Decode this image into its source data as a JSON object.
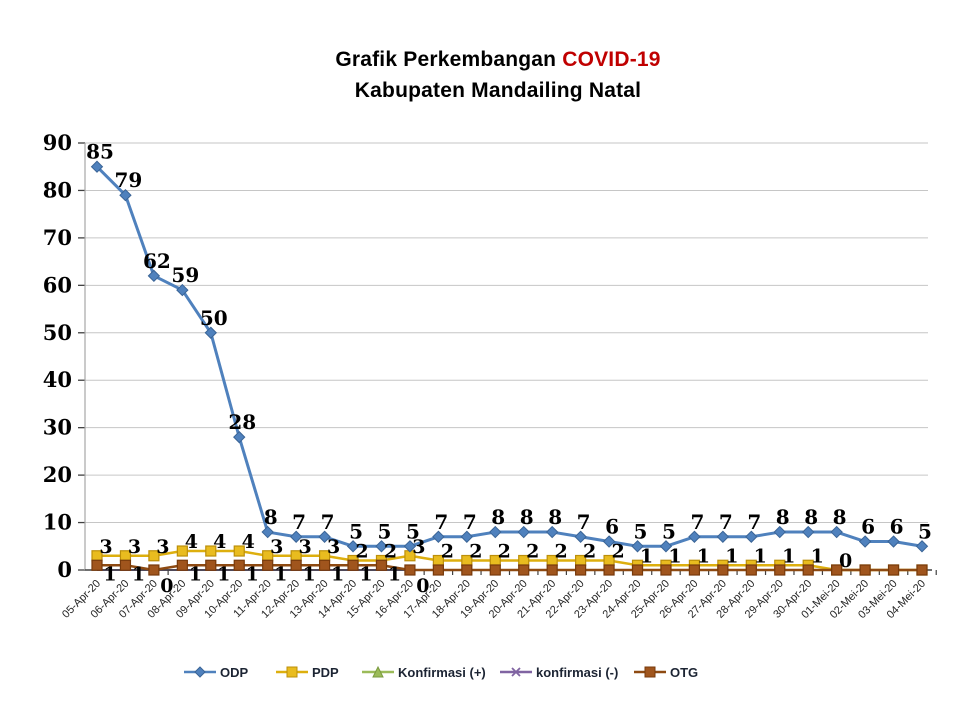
{
  "title": {
    "line1_black": "Grafik Perkembangan",
    "line1_red": "COVID-19",
    "line2": "Kabupaten Mandailing Natal"
  },
  "colors": {
    "title_text": "#000000",
    "title_covid_red": "#C00000",
    "gridline": "#C6C6C6",
    "y_axis_line": "#A6A6A6",
    "x_axis_line": "#404040",
    "tick": "#404040",
    "axis_label_text": "#000000",
    "date_label_text": "#262626",
    "data_label_text": "#000000",
    "legend_text": "#1c2433",
    "background": "#FFFFFF"
  },
  "chart_data": {
    "type": "line",
    "title": "Grafik Perkembangan COVID-19 Kabupaten Mandailing Natal",
    "categories": [
      "05-Apr-20",
      "06-Apr-20",
      "07-Apr-20",
      "08-Apr-20",
      "09-Apr-20",
      "10-Apr-20",
      "11-Apr-20",
      "12-Apr-20",
      "13-Apr-20",
      "14-Apr-20",
      "15-Apr-20",
      "16-Apr-20",
      "17-Apr-20",
      "18-Apr-20",
      "19-Apr-20",
      "20-Apr-20",
      "21-Apr-20",
      "22-Apr-20",
      "23-Apr-20",
      "24-Apr-20",
      "25-Apr-20",
      "26-Apr-20",
      "27-Apr-20",
      "28-Apr-20",
      "29-Apr-20",
      "30-Apr-20",
      "01-Mei-20",
      "02-Mei-20",
      "03-Mei-20",
      "04-Mei-20"
    ],
    "series": [
      {
        "name": "ODP",
        "marker": "diamond",
        "color": "#4F81BD",
        "marker_fill": "#4F81BD",
        "marker_stroke": "#3A6496",
        "values": [
          85,
          79,
          62,
          59,
          50,
          28,
          8,
          7,
          7,
          5,
          5,
          5,
          7,
          7,
          8,
          8,
          8,
          7,
          6,
          5,
          5,
          7,
          7,
          7,
          8,
          8,
          8,
          6,
          6,
          5
        ],
        "labels_visible_count": 30
      },
      {
        "name": "PDP",
        "marker": "square",
        "color": "#DDAF0E",
        "marker_fill": "#E9BC1F",
        "marker_stroke": "#BC8F0A",
        "values": [
          3,
          3,
          3,
          4,
          4,
          4,
          3,
          3,
          3,
          2,
          2,
          3,
          2,
          2,
          2,
          2,
          2,
          2,
          2,
          1,
          1,
          1,
          1,
          1,
          1,
          1,
          0,
          0,
          0,
          0
        ],
        "labels_visible_count": 27
      },
      {
        "name": "Konfirmasi (+)",
        "marker": "triangle",
        "color": "#9BBB59",
        "marker_fill": "#9BBB59",
        "marker_stroke": "#7A9A3F",
        "values": [
          0,
          0,
          0,
          0,
          0,
          0,
          0,
          0,
          0,
          0,
          0,
          0,
          0,
          0,
          0,
          0,
          0,
          0,
          0,
          0,
          0,
          0,
          0,
          0,
          0,
          0,
          0,
          0,
          0,
          0
        ],
        "labels_visible_count": 0
      },
      {
        "name": "konfirmasi (-)",
        "marker": "x",
        "color": "#8064A2",
        "marker_fill": "#8064A2",
        "marker_stroke": "#8064A2",
        "values": [
          0,
          0,
          0,
          0,
          0,
          0,
          0,
          0,
          0,
          0,
          0,
          0,
          0,
          0,
          0,
          0,
          0,
          0,
          0,
          0,
          0,
          0,
          0,
          0,
          0,
          0,
          0,
          0,
          0,
          0
        ],
        "labels_visible_count": 0
      },
      {
        "name": "OTG",
        "marker": "square",
        "color": "#8E4A12",
        "marker_fill": "#A0551D",
        "marker_stroke": "#773A0C",
        "values": [
          1,
          1,
          0,
          1,
          1,
          1,
          1,
          1,
          1,
          1,
          1,
          0,
          0,
          0,
          0,
          0,
          0,
          0,
          0,
          0,
          0,
          0,
          0,
          0,
          0,
          0,
          0,
          0,
          0,
          0
        ],
        "labels_visible_count": 12
      }
    ],
    "xlabel": "",
    "ylabel": "",
    "ylim": [
      0,
      90
    ],
    "ytick_step": 10,
    "y_tick_labels": [
      "0",
      "10",
      "20",
      "30",
      "40",
      "50",
      "60",
      "70",
      "80",
      "90"
    ],
    "grid": true,
    "x_label_rotation": -45,
    "legend_position": "bottom"
  }
}
